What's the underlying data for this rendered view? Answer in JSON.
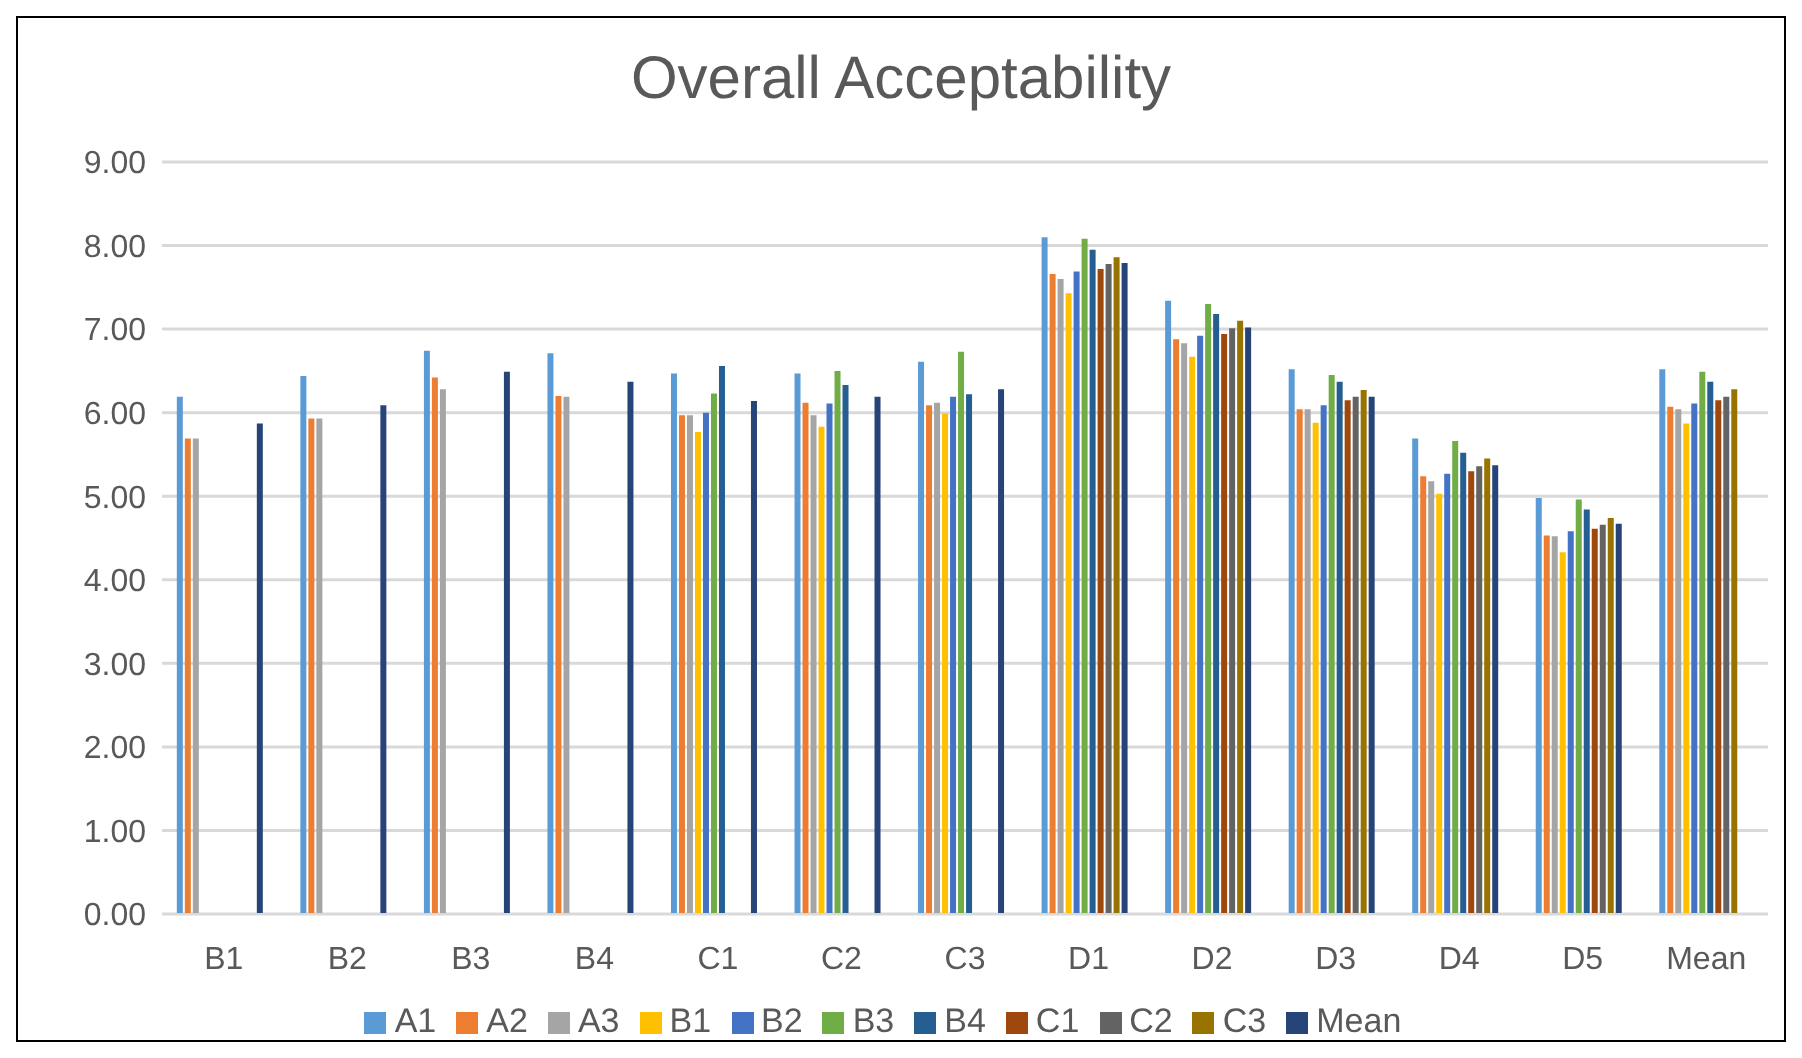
{
  "chart_data": {
    "type": "bar",
    "title": "Overall Acceptability",
    "categories": [
      "B1",
      "B2",
      "B3",
      "B4",
      "C1",
      "C2",
      "C3",
      "D1",
      "D2",
      "D3",
      "D4",
      "D5",
      "Mean"
    ],
    "ylim": [
      0,
      9
    ],
    "yticks": [
      {
        "value": 0,
        "label": "0.00"
      },
      {
        "value": 1,
        "label": "1.00"
      },
      {
        "value": 2,
        "label": "2.00"
      },
      {
        "value": 3,
        "label": "3.00"
      },
      {
        "value": 4,
        "label": "4.00"
      },
      {
        "value": 5,
        "label": "5.00"
      },
      {
        "value": 6,
        "label": "6.00"
      },
      {
        "value": 7,
        "label": "7.00"
      },
      {
        "value": 8,
        "label": "8.00"
      },
      {
        "value": 9,
        "label": "9.00"
      }
    ],
    "grid": "y",
    "legend": "bottom",
    "series": [
      {
        "name": "A1",
        "color": "#5b9bd5",
        "values": [
          6.19,
          6.44,
          6.74,
          6.71,
          6.47,
          6.47,
          6.61,
          8.1,
          7.34,
          6.52,
          5.69,
          4.98,
          6.52
        ]
      },
      {
        "name": "A2",
        "color": "#ed7d31",
        "values": [
          5.69,
          5.93,
          6.42,
          6.2,
          5.97,
          6.12,
          6.09,
          7.66,
          6.88,
          6.04,
          5.24,
          4.53,
          6.07
        ]
      },
      {
        "name": "A3",
        "color": "#a5a5a5",
        "values": [
          5.69,
          5.93,
          6.28,
          6.19,
          5.97,
          5.97,
          6.12,
          7.6,
          6.83,
          6.04,
          5.18,
          4.52,
          6.04
        ]
      },
      {
        "name": "B1",
        "color": "#ffc000",
        "values": [
          null,
          null,
          null,
          null,
          5.77,
          5.83,
          5.99,
          7.43,
          6.67,
          5.88,
          5.03,
          4.33,
          5.87
        ]
      },
      {
        "name": "B2",
        "color": "#4472c4",
        "values": [
          null,
          null,
          null,
          null,
          6.0,
          6.11,
          6.19,
          7.69,
          6.92,
          6.09,
          5.27,
          4.58,
          6.11
        ]
      },
      {
        "name": "B3",
        "color": "#70ad47",
        "values": [
          null,
          null,
          null,
          null,
          6.23,
          6.5,
          6.73,
          8.08,
          7.3,
          6.45,
          5.66,
          4.96,
          6.49
        ]
      },
      {
        "name": "B4",
        "color": "#255e91",
        "values": [
          null,
          null,
          null,
          null,
          6.56,
          6.33,
          6.22,
          7.95,
          7.18,
          6.37,
          5.52,
          4.84,
          6.37
        ]
      },
      {
        "name": "C1",
        "color": "#9e480e",
        "values": [
          null,
          null,
          null,
          null,
          null,
          null,
          null,
          7.72,
          6.94,
          6.15,
          5.3,
          4.61,
          6.15
        ]
      },
      {
        "name": "C2",
        "color": "#636363",
        "values": [
          null,
          null,
          null,
          null,
          null,
          null,
          null,
          7.78,
          7.01,
          6.19,
          5.36,
          4.66,
          6.19
        ]
      },
      {
        "name": "C3",
        "color": "#997300",
        "values": [
          null,
          null,
          null,
          null,
          null,
          null,
          null,
          7.86,
          7.1,
          6.27,
          5.45,
          4.74,
          6.28
        ]
      },
      {
        "name": "Mean",
        "color": "#264478",
        "values": [
          5.87,
          6.09,
          6.49,
          6.37,
          6.14,
          6.19,
          6.28,
          7.79,
          7.02,
          6.19,
          5.37,
          4.67,
          null
        ]
      }
    ]
  }
}
